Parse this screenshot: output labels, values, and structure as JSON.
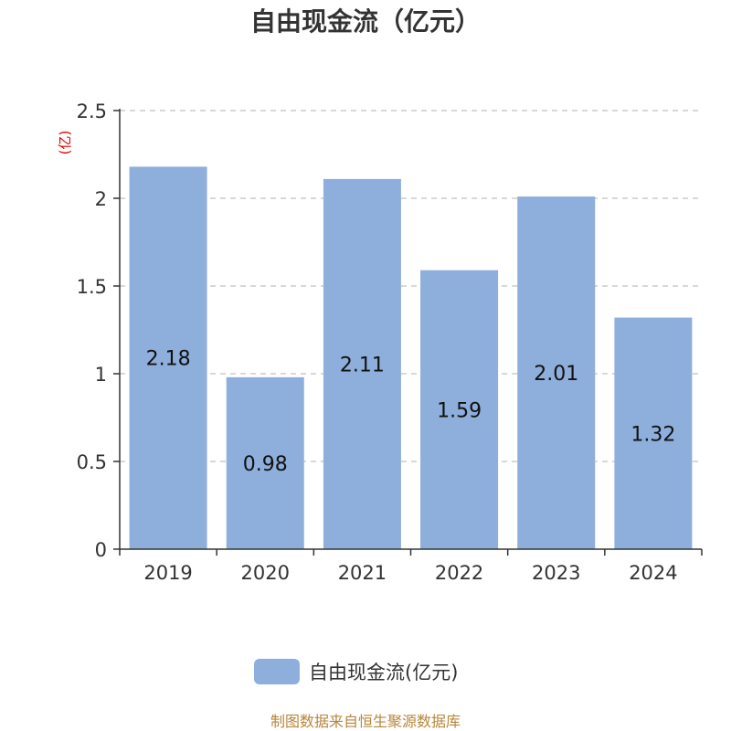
{
  "chart_data": {
    "type": "bar",
    "title": "自由现金流（亿元）",
    "unit_label": "(亿)",
    "categories": [
      "2019",
      "2020",
      "2021",
      "2022",
      "2023",
      "2024"
    ],
    "series": [
      {
        "name": "自由现金流(亿元)",
        "values": [
          2.18,
          0.98,
          2.11,
          1.59,
          2.01,
          1.32
        ]
      }
    ],
    "value_labels": [
      "2.18",
      "0.98",
      "2.11",
      "1.59",
      "2.01",
      "1.32"
    ],
    "yticks": [
      "0",
      "0.5",
      "1",
      "1.5",
      "2",
      "2.5"
    ],
    "ylim": [
      0,
      2.5
    ],
    "grid": true,
    "legend_position": "bottom",
    "bar_color": "#8eaedb",
    "unit_color": "#e00000"
  },
  "footer": {
    "source_text": "制图数据来自恒生聚源数据库"
  }
}
